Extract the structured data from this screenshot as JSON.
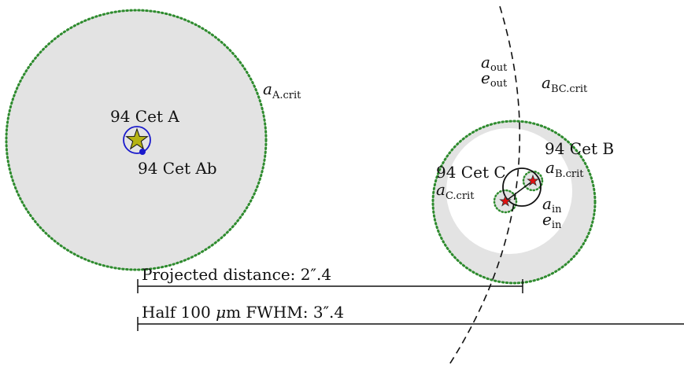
{
  "colors": {
    "region_fill": "#e3e3e3",
    "critical_boundary": "#2e8b2e",
    "star_a": "#b5b313",
    "star_bc": "#e01010",
    "orbit_ab": "#1a1acc",
    "line": "#111111"
  },
  "labels": {
    "star_a": "94 Cet A",
    "star_ab": "94 Cet Ab",
    "star_b": "94 Cet B",
    "star_c": "94 Cet C",
    "a_sym": "a",
    "e_sym": "e",
    "crit_a_sub": "A.crit",
    "crit_bc_sub": "BC.crit",
    "crit_b_sub": "B.crit",
    "crit_c_sub": "C.crit",
    "out_sub": "out",
    "in_sub": "in"
  },
  "scale_bars": [
    {
      "prefix": "Projected distance: 2",
      "arcsec": "″",
      "suffix": ".4"
    },
    {
      "prefix": "Half 100 ",
      "mu": "μ",
      "middle": "m FWHM: 3",
      "arcsec": "″",
      "suffix": ".4"
    }
  ]
}
